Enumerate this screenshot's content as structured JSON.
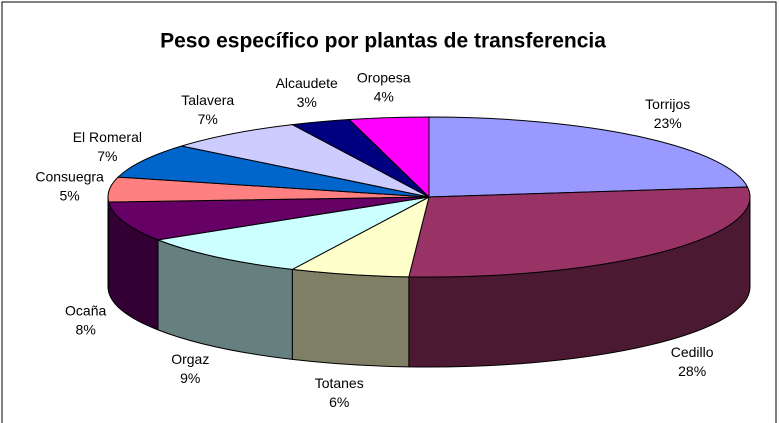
{
  "chart_data": {
    "type": "pie3d",
    "title": "Peso específico por plantas de transferencia",
    "categories": [
      "Torrijos",
      "Cedillo",
      "Totanes",
      "Orgaz",
      "Ocaña",
      "Consuegra",
      "El Romeral",
      "Talavera",
      "Alcaudete",
      "Oropesa"
    ],
    "values": [
      23,
      28,
      6,
      9,
      8,
      5,
      7,
      7,
      3,
      4
    ],
    "value_labels": [
      "23%",
      "28%",
      "6%",
      "9%",
      "8%",
      "5%",
      "7%",
      "7%",
      "3%",
      "4%"
    ],
    "colors": [
      "#9999ff",
      "#993366",
      "#ffffcc",
      "#ccffff",
      "#660066",
      "#ff8080",
      "#0066cc",
      "#ccccff",
      "#000080",
      "#ff00ff"
    ]
  }
}
